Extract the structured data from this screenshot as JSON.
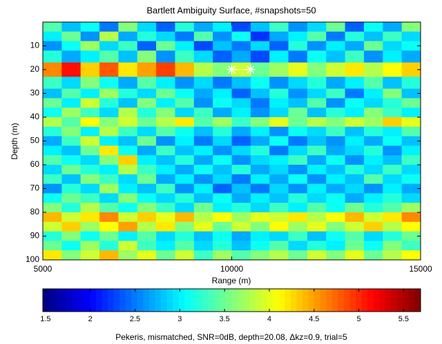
{
  "chart_data": {
    "type": "heatmap",
    "title": "Bartlett Ambiguity Surface, #snapshots=50",
    "x_label": "Range (m)",
    "y_label": "Depth (m)",
    "colorbar_label": "Pekeris, mismatched, SNR=0dB, depth=20.08, Δkz=0.9, trial=5",
    "colormap": "jet",
    "xlim": [
      5000,
      15000
    ],
    "xticks": [
      5000,
      10000,
      15000
    ],
    "ylim": [
      0,
      100
    ],
    "yticks": [
      10,
      20,
      30,
      40,
      50,
      60,
      70,
      80,
      90,
      100
    ],
    "y_reversed": true,
    "clim": [
      1.47,
      5.69
    ],
    "cticks": [
      1.5,
      2,
      2.5,
      3,
      3.5,
      4,
      4.5,
      5,
      5.5
    ],
    "x": [
      5250,
      5750,
      6250,
      6750,
      7250,
      7750,
      8250,
      8750,
      9250,
      9750,
      10250,
      10750,
      11250,
      11750,
      12250,
      12750,
      13250,
      13750,
      14250,
      14750
    ],
    "y": [
      2,
      6,
      10,
      14,
      20,
      26,
      30,
      34,
      38,
      42,
      46,
      50,
      54,
      58,
      62,
      66,
      70,
      74,
      78,
      82,
      86,
      90,
      94,
      98
    ],
    "z": [
      [
        3.4,
        2.8,
        3.1,
        2.5,
        3.6,
        2.9,
        2.4,
        3.2,
        2.7,
        3.0,
        2.3,
        2.8,
        3.3,
        2.6,
        2.9,
        3.5,
        2.4,
        3.1,
        2.7,
        3.6
      ],
      [
        3.0,
        3.5,
        2.6,
        3.8,
        2.7,
        3.2,
        2.9,
        2.5,
        3.4,
        2.6,
        3.1,
        2.2,
        2.7,
        3.0,
        3.4,
        2.5,
        3.2,
        2.8,
        3.3,
        2.9
      ],
      [
        2.6,
        3.1,
        3.7,
        2.9,
        3.3,
        2.4,
        3.5,
        3.0,
        2.3,
        2.8,
        2.5,
        2.9,
        2.4,
        3.2,
        2.6,
        3.0,
        2.7,
        3.5,
        2.9,
        3.1
      ],
      [
        3.2,
        2.7,
        3.0,
        3.4,
        2.8,
        3.6,
        2.6,
        3.3,
        2.9,
        2.4,
        2.7,
        2.3,
        3.0,
        2.5,
        3.1,
        2.8,
        3.3,
        2.6,
        3.0,
        2.7
      ],
      [
        4.6,
        5.1,
        4.3,
        4.8,
        4.2,
        4.5,
        4.9,
        4.4,
        3.8,
        3.6,
        3.9,
        3.5,
        3.7,
        4.0,
        3.6,
        3.9,
        4.2,
        3.8,
        4.1,
        4.3
      ],
      [
        3.3,
        2.9,
        3.6,
        3.1,
        2.7,
        3.4,
        3.0,
        2.6,
        2.9,
        2.5,
        2.8,
        3.1,
        2.6,
        2.9,
        3.2,
        2.7,
        3.0,
        3.4,
        2.8,
        3.2
      ],
      [
        2.8,
        3.4,
        3.0,
        3.7,
        3.2,
        2.9,
        3.5,
        3.1,
        2.7,
        3.0,
        2.4,
        2.8,
        3.2,
        2.6,
        2.9,
        3.3,
        2.5,
        3.0,
        3.6,
        2.8
      ],
      [
        3.5,
        3.0,
        3.9,
        3.2,
        2.8,
        3.6,
        3.0,
        3.4,
        2.6,
        3.1,
        2.9,
        2.5,
        3.0,
        2.8,
        3.4,
        2.6,
        3.1,
        2.9,
        3.2,
        3.5
      ],
      [
        3.1,
        3.7,
        3.3,
        2.9,
        3.8,
        3.2,
        3.6,
        2.9,
        3.3,
        2.7,
        3.0,
        2.6,
        2.9,
        3.5,
        2.8,
        3.2,
        3.0,
        3.6,
        3.3,
        3.0
      ],
      [
        3.8,
        3.4,
        4.1,
        3.6,
        3.9,
        3.5,
        3.8,
        4.2,
        3.4,
        3.7,
        3.3,
        3.6,
        4.0,
        3.5,
        3.8,
        3.6,
        3.9,
        3.7,
        4.3,
        4.0
      ],
      [
        3.2,
        3.6,
        3.0,
        3.8,
        3.3,
        2.9,
        3.4,
        3.1,
        2.8,
        3.2,
        2.7,
        3.0,
        2.6,
        3.1,
        2.9,
        3.3,
        2.8,
        3.2,
        3.0,
        3.4
      ],
      [
        2.7,
        3.3,
        3.9,
        3.0,
        2.8,
        3.5,
        2.6,
        3.0,
        2.5,
        2.9,
        2.4,
        2.7,
        3.1,
        2.5,
        2.8,
        2.6,
        3.0,
        2.7,
        3.1,
        2.8
      ],
      [
        3.0,
        2.8,
        3.5,
        4.2,
        3.1,
        2.7,
        3.3,
        2.8,
        3.0,
        2.6,
        2.9,
        3.2,
        2.5,
        2.9,
        3.3,
        2.7,
        2.9,
        3.2,
        2.6,
        3.0
      ],
      [
        3.4,
        3.1,
        2.9,
        3.6,
        4.3,
        3.0,
        2.8,
        3.2,
        2.7,
        3.1,
        2.6,
        2.9,
        3.0,
        3.3,
        2.7,
        3.1,
        2.6,
        3.0,
        2.8,
        3.3
      ],
      [
        2.9,
        3.5,
        3.2,
        3.0,
        3.8,
        3.3,
        3.0,
        2.7,
        3.1,
        2.8,
        3.2,
        2.7,
        2.9,
        2.6,
        3.0,
        2.8,
        3.2,
        2.9,
        3.3,
        2.9
      ],
      [
        3.3,
        2.8,
        3.6,
        3.3,
        2.9,
        3.5,
        2.7,
        3.0,
        2.6,
        2.9,
        2.5,
        3.0,
        2.7,
        3.1,
        2.6,
        3.0,
        2.8,
        3.4,
        2.9,
        3.1
      ],
      [
        2.6,
        3.2,
        2.9,
        3.7,
        3.0,
        2.8,
        3.3,
        2.6,
        3.0,
        2.4,
        2.8,
        2.5,
        2.9,
        2.6,
        3.0,
        2.7,
        2.9,
        2.6,
        3.0,
        2.7
      ],
      [
        3.1,
        3.5,
        3.3,
        2.9,
        3.6,
        3.1,
        2.9,
        3.2,
        2.8,
        3.1,
        2.7,
        3.0,
        2.8,
        3.2,
        2.9,
        3.1,
        2.7,
        3.0,
        3.2,
        2.9
      ],
      [
        3.6,
        3.2,
        3.8,
        3.4,
        3.1,
        3.6,
        3.3,
        2.9,
        3.5,
        3.0,
        3.2,
        2.9,
        3.3,
        3.0,
        3.4,
        3.1,
        3.5,
        3.2,
        3.4,
        3.7
      ],
      [
        4.4,
        3.9,
        4.2,
        4.6,
        3.9,
        4.3,
        4.0,
        4.4,
        3.8,
        4.1,
        3.7,
        4.0,
        3.9,
        4.2,
        3.8,
        4.1,
        4.4,
        3.9,
        4.2,
        4.6
      ],
      [
        3.9,
        4.3,
        3.7,
        4.1,
        4.5,
        3.8,
        4.2,
        3.6,
        4.0,
        3.5,
        3.9,
        3.6,
        4.1,
        3.7,
        4.0,
        3.6,
        3.9,
        4.3,
        3.8,
        4.1
      ],
      [
        3.2,
        3.6,
        3.1,
        3.5,
        3.0,
        3.4,
        2.9,
        3.2,
        2.8,
        3.1,
        2.7,
        3.0,
        2.9,
        3.3,
        2.8,
        3.1,
        3.4,
        2.9,
        3.2,
        3.5
      ],
      [
        3.5,
        3.1,
        3.7,
        3.2,
        3.9,
        3.3,
        3.0,
        3.4,
        2.9,
        3.2,
        2.8,
        3.1,
        3.4,
        2.9,
        3.2,
        3.0,
        3.5,
        3.1,
        3.6,
        3.3
      ],
      [
        4.2,
        3.6,
        3.9,
        4.4,
        3.7,
        4.0,
        3.5,
        3.9,
        3.3,
        3.7,
        3.4,
        3.6,
        3.8,
        3.5,
        3.9,
        3.6,
        4.0,
        3.5,
        3.8,
        4.1
      ]
    ],
    "markers": {
      "color": "#ffffff",
      "x": [
        10000,
        10500
      ],
      "y": [
        20,
        20
      ]
    }
  }
}
